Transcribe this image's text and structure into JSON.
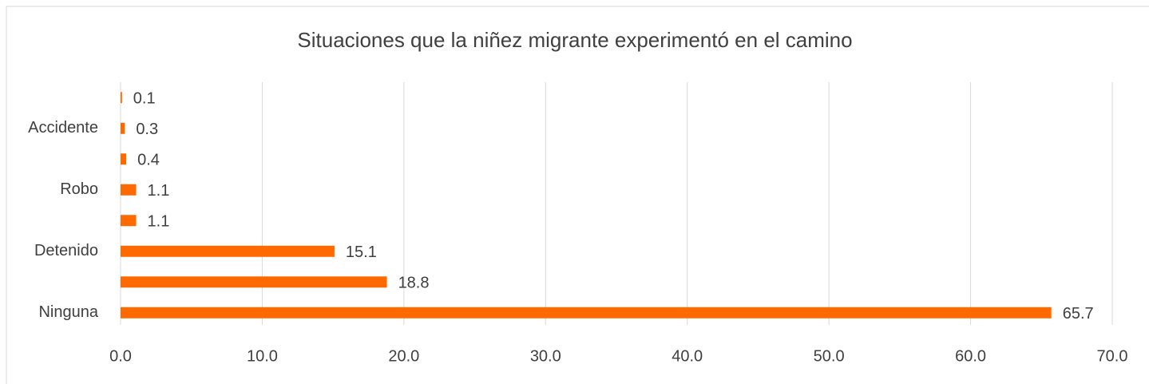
{
  "chart_data": {
    "type": "barh",
    "title": "Situaciones que la niñez migrante experimentó en el camino",
    "categories": [
      null,
      "Accidente",
      null,
      "Robo",
      null,
      "Detenido",
      null,
      "Ninguna"
    ],
    "values": [
      0.1,
      0.3,
      0.4,
      1.1,
      1.1,
      15.1,
      18.8,
      65.7
    ],
    "color": "#ff6a00",
    "xlim": [
      0,
      70
    ],
    "xticks": [
      {
        "value": 0,
        "label": "0.0"
      },
      {
        "value": 10,
        "label": "10.0"
      },
      {
        "value": 20,
        "label": "20.0"
      },
      {
        "value": 30,
        "label": "30.0"
      },
      {
        "value": 40,
        "label": "40.0"
      },
      {
        "value": 50,
        "label": "50.0"
      },
      {
        "value": 60,
        "label": "60.0"
      },
      {
        "value": 70,
        "label": "70.0"
      }
    ],
    "grid": true
  }
}
